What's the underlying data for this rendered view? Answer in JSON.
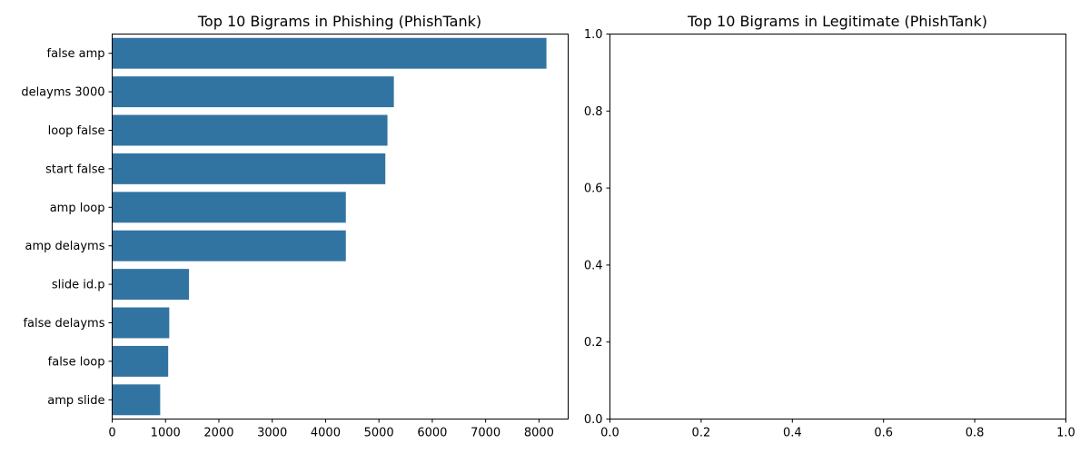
{
  "chart_data": [
    {
      "type": "bar",
      "orientation": "horizontal",
      "title": "Top 10 Bigrams in Phishing (PhishTank)",
      "xlabel": "",
      "ylabel": "",
      "categories": [
        "false amp",
        "delayms 3000",
        "loop false",
        "start false",
        "amp loop",
        "amp delayms",
        "slide id.p",
        "false delayms",
        "false loop",
        "amp slide"
      ],
      "values": [
        8140,
        5280,
        5160,
        5120,
        4380,
        4380,
        1440,
        1070,
        1050,
        900
      ],
      "xlim": [
        0,
        8547
      ],
      "xticks": [
        "0",
        "1000",
        "2000",
        "3000",
        "4000",
        "5000",
        "6000",
        "7000",
        "8000"
      ],
      "bar_color": "#3274a1",
      "grid": false
    },
    {
      "type": "bar",
      "orientation": "horizontal",
      "title": "Top 10 Bigrams in Legitimate (PhishTank)",
      "xlabel": "",
      "ylabel": "",
      "categories": [],
      "values": [],
      "xlim": [
        0,
        1
      ],
      "ylim": [
        0,
        1
      ],
      "xticks": [
        "0.0",
        "0.2",
        "0.4",
        "0.6",
        "0.8",
        "1.0"
      ],
      "yticks": [
        "0.0",
        "0.2",
        "0.4",
        "0.6",
        "0.8",
        "1.0"
      ],
      "grid": false
    }
  ]
}
